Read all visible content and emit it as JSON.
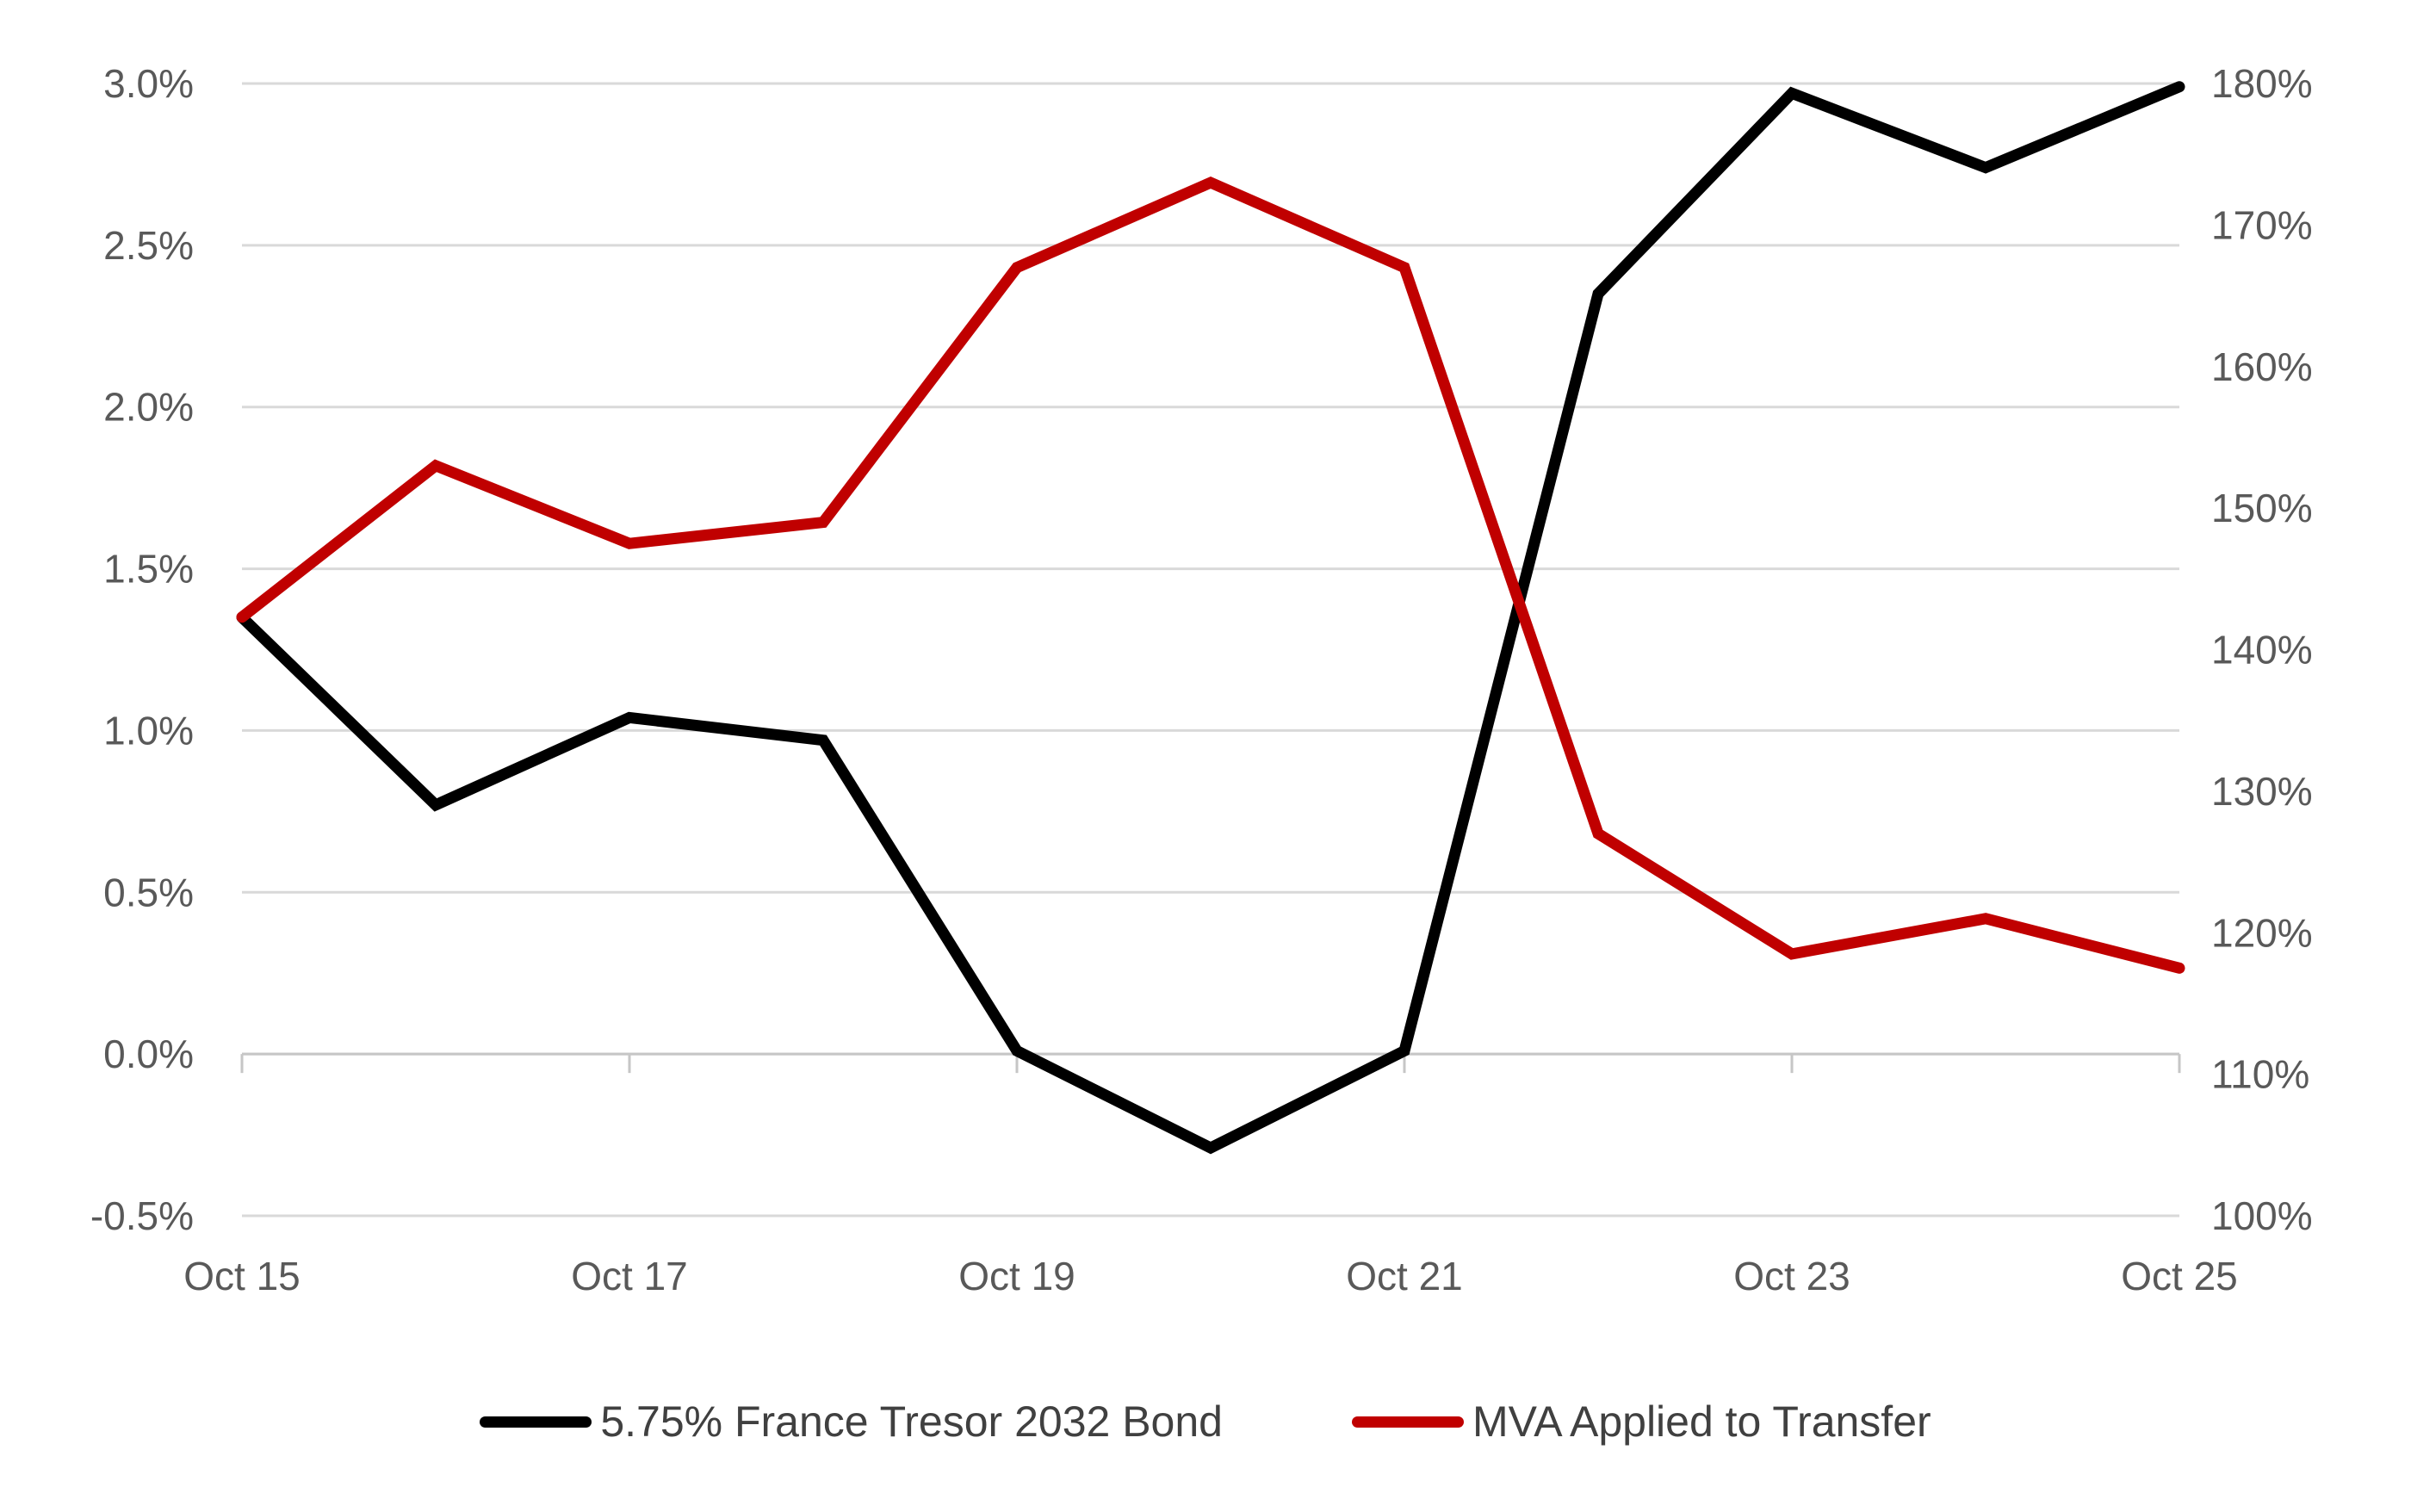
{
  "chart_data": {
    "type": "line",
    "categories": [
      "Oct 15",
      "Oct 16",
      "Oct 17",
      "Oct 18",
      "Oct 19",
      "Oct 20",
      "Oct 21",
      "Oct 22",
      "Oct 23",
      "Oct 24",
      "Oct 25"
    ],
    "x_axis": {
      "tick_labels": [
        "Oct 15",
        "Oct 17",
        "Oct 19",
        "Oct 21",
        "Oct 23",
        "Oct 25"
      ],
      "tick_every": 2
    },
    "left_axis": {
      "min": -0.5,
      "max": 3.0,
      "step": 0.5,
      "tick_labels": [
        "3.0%",
        "2.5%",
        "2.0%",
        "1.5%",
        "1.0%",
        "0.5%",
        "0.0%",
        "-0.5%"
      ]
    },
    "right_axis": {
      "min": 100,
      "max": 180,
      "step": 10,
      "tick_labels": [
        "180%",
        "170%",
        "160%",
        "150%",
        "140%",
        "130%",
        "120%",
        "110%",
        "100%"
      ]
    },
    "series": [
      {
        "name": "5.75% France Tresor 2032 Bond",
        "axis": "left",
        "color": "#000000",
        "values": [
          1.35,
          0.77,
          1.04,
          0.97,
          0.01,
          -0.29,
          0.01,
          2.35,
          2.97,
          2.74,
          2.99
        ]
      },
      {
        "name": "MVA Applied to Transfer",
        "axis": "right",
        "color": "#C00000",
        "values": [
          142.3,
          153,
          147.5,
          149,
          167,
          173,
          167,
          127,
          118.5,
          121,
          117.5
        ]
      }
    ],
    "grid": true,
    "legend_position": "bottom",
    "title": "",
    "xlabel": "",
    "ylabel": ""
  },
  "colors": {
    "background": "#FFFFFF",
    "gridline": "#D9D9D9",
    "axis_line": "#C6C6C6",
    "axis_text": "#595959",
    "legend_text": "#404040"
  }
}
